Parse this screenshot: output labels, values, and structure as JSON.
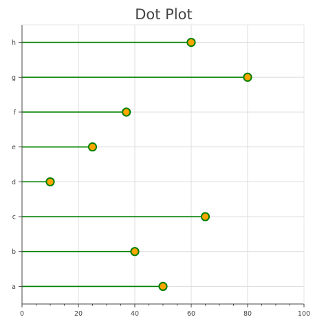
{
  "chart_data": {
    "type": "scatter",
    "title": "Dot Plot",
    "categories": [
      "a",
      "b",
      "c",
      "d",
      "e",
      "f",
      "g",
      "h"
    ],
    "values": [
      50,
      40,
      65,
      10,
      25,
      37,
      80,
      60
    ],
    "xlabel": "",
    "ylabel": "",
    "xlim": [
      0,
      100
    ],
    "xticks": [
      0,
      20,
      40,
      60,
      80,
      100
    ],
    "grid": true,
    "colors": {
      "stem": "#008000",
      "marker_fill": "#ffa500",
      "marker_edge": "#008000",
      "grid": "#dcdcdc",
      "axis": "#444444"
    }
  }
}
